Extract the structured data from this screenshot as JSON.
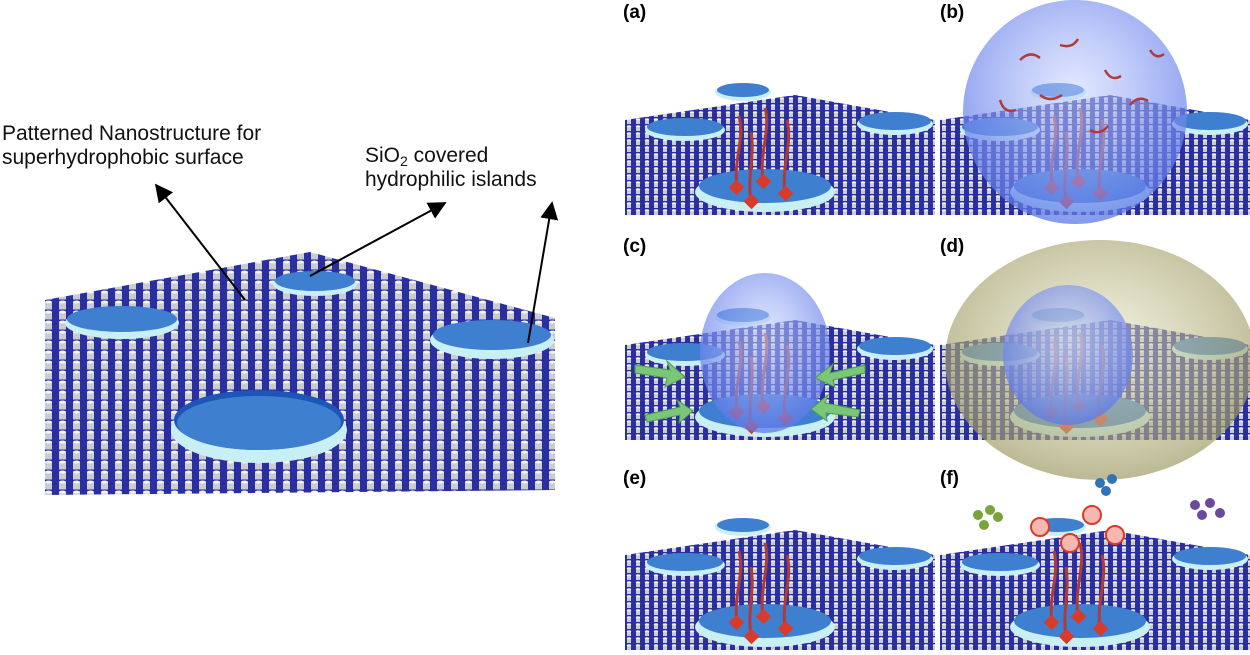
{
  "figure": {
    "callouts": {
      "nanostructure_line1": "Patterned Nanostructure for",
      "nanostructure_line2": "superhydrophobic surface",
      "sio_prefix": "SiO",
      "sio_sub": "2",
      "sio_suffix": " covered",
      "hydrophilic": "hydrophilic islands"
    },
    "panels": [
      {
        "label": "(a)"
      },
      {
        "label": "(b)"
      },
      {
        "label": "(c)"
      },
      {
        "label": "(d)"
      },
      {
        "label": "(e)"
      },
      {
        "label": "(f)"
      }
    ],
    "colors": {
      "substrate": "#2b2e9e",
      "pillar": "#d4d6d8",
      "island_fill": "#3f7fd0",
      "island_rim": "#c8f0f4",
      "strand": "#b03a3a",
      "probe": "#d93b2b",
      "droplet": "#6f8cf0",
      "outer_droplet": "#a8a56e",
      "arrow": "#7ac77a"
    }
  }
}
